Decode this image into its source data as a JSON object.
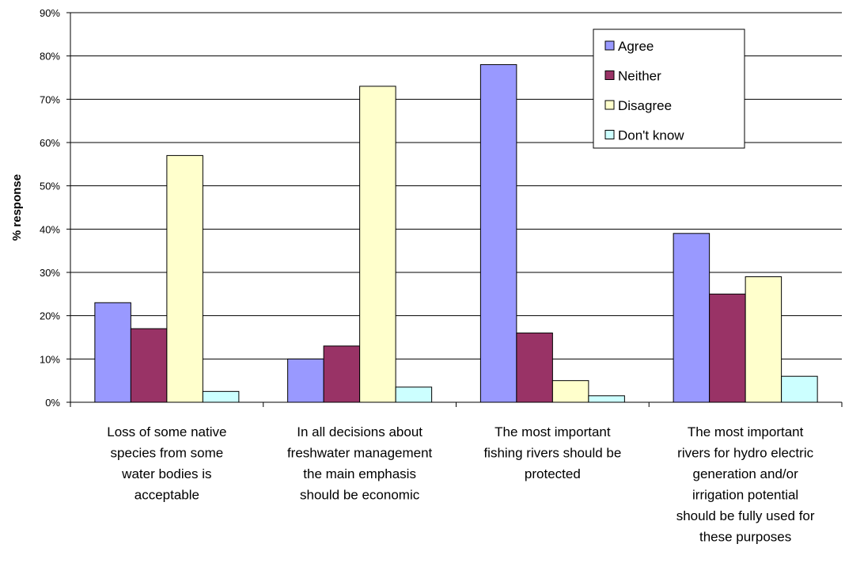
{
  "chart_data": {
    "type": "bar",
    "ylabel": "% response",
    "ylim": [
      0,
      90
    ],
    "y_ticks": [
      "0%",
      "10%",
      "20%",
      "30%",
      "40%",
      "50%",
      "60%",
      "70%",
      "80%",
      "90%"
    ],
    "categories": [
      [
        "Loss of some native",
        "species from some",
        "water bodies is",
        "acceptable"
      ],
      [
        "In all decisions about",
        "freshwater management",
        "the main emphasis",
        "should be economic"
      ],
      [
        "The most important",
        "fishing rivers should be",
        "protected"
      ],
      [
        "The most important",
        "rivers for hydro electric",
        "generation and/or",
        "irrigation potential",
        "should be fully used for",
        "these purposes"
      ]
    ],
    "series": [
      {
        "name": "Agree",
        "color": "#9999ff",
        "values": [
          23,
          10,
          78,
          39
        ]
      },
      {
        "name": "Neither",
        "color": "#993366",
        "values": [
          17,
          13,
          16,
          25
        ]
      },
      {
        "name": "Disagree",
        "color": "#ffffcc",
        "values": [
          57,
          73,
          5,
          29
        ]
      },
      {
        "name": "Don't know",
        "color": "#ccffff",
        "values": [
          2.5,
          3.5,
          1.5,
          6
        ]
      }
    ],
    "grid": true,
    "legend_position": "top-right"
  }
}
